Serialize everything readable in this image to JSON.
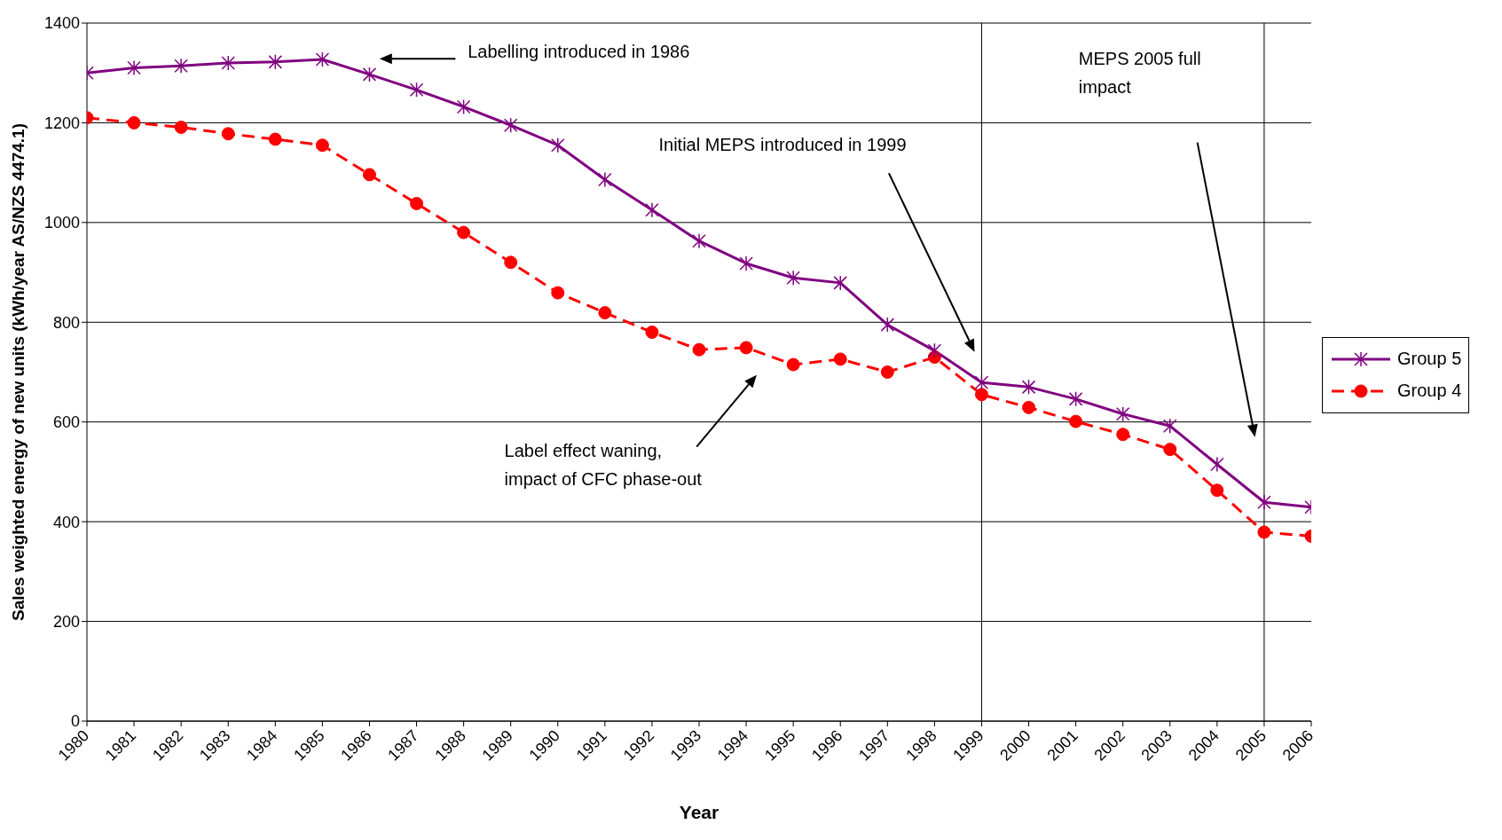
{
  "chart_data": {
    "type": "line",
    "xlabel": "Year",
    "ylabel": "Sales weighted energy of new units (kWh/year AS/NZS 4474.1)",
    "x": [
      1980,
      1981,
      1982,
      1983,
      1984,
      1985,
      1986,
      1987,
      1988,
      1989,
      1990,
      1991,
      1992,
      1993,
      1994,
      1995,
      1996,
      1997,
      1998,
      1999,
      2000,
      2001,
      2002,
      2003,
      2004,
      2005,
      2006
    ],
    "xlim": [
      1980,
      2006
    ],
    "xticks": [
      1980,
      1981,
      1982,
      1983,
      1984,
      1985,
      1986,
      1987,
      1988,
      1989,
      1990,
      1991,
      1992,
      1993,
      1994,
      1995,
      1996,
      1997,
      1998,
      1999,
      2000,
      2001,
      2002,
      2003,
      2004,
      2005,
      2006
    ],
    "ylim": [
      0,
      1400
    ],
    "yticks": [
      0,
      200,
      400,
      600,
      800,
      1000,
      1200,
      1400
    ],
    "grid": "y",
    "legend": "right",
    "series": [
      {
        "name": "Group 5",
        "color": "#800080",
        "marker": "cross",
        "line_style": "solid",
        "values": [
          1300,
          1310,
          1314,
          1320,
          1322,
          1327,
          1297,
          1266,
          1232,
          1195,
          1155,
          1086,
          1025,
          963,
          918,
          889,
          879,
          795,
          743,
          679,
          670,
          646,
          616,
          592,
          515,
          439,
          429
        ]
      },
      {
        "name": "Group 4",
        "color": "#ff0000",
        "marker": "circle",
        "line_style": "dashed",
        "values": [
          1210,
          1200,
          1191,
          1178,
          1167,
          1155,
          1096,
          1038,
          980,
          920,
          859,
          819,
          780,
          745,
          749,
          715,
          726,
          700,
          730,
          655,
          629,
          601,
          575,
          545,
          463,
          379,
          371
        ]
      }
    ],
    "ref_lines": [
      {
        "axis": "x",
        "value": 1999,
        "color": "#000000"
      },
      {
        "axis": "x",
        "value": 2005,
        "color": "#000000"
      }
    ],
    "annotations": [
      "Labelling introduced in 1986",
      "Initial MEPS introduced in 1999",
      "MEPS 2005 full\nimpact",
      "Label effect waning,\nimpact of CFC phase-out"
    ]
  }
}
